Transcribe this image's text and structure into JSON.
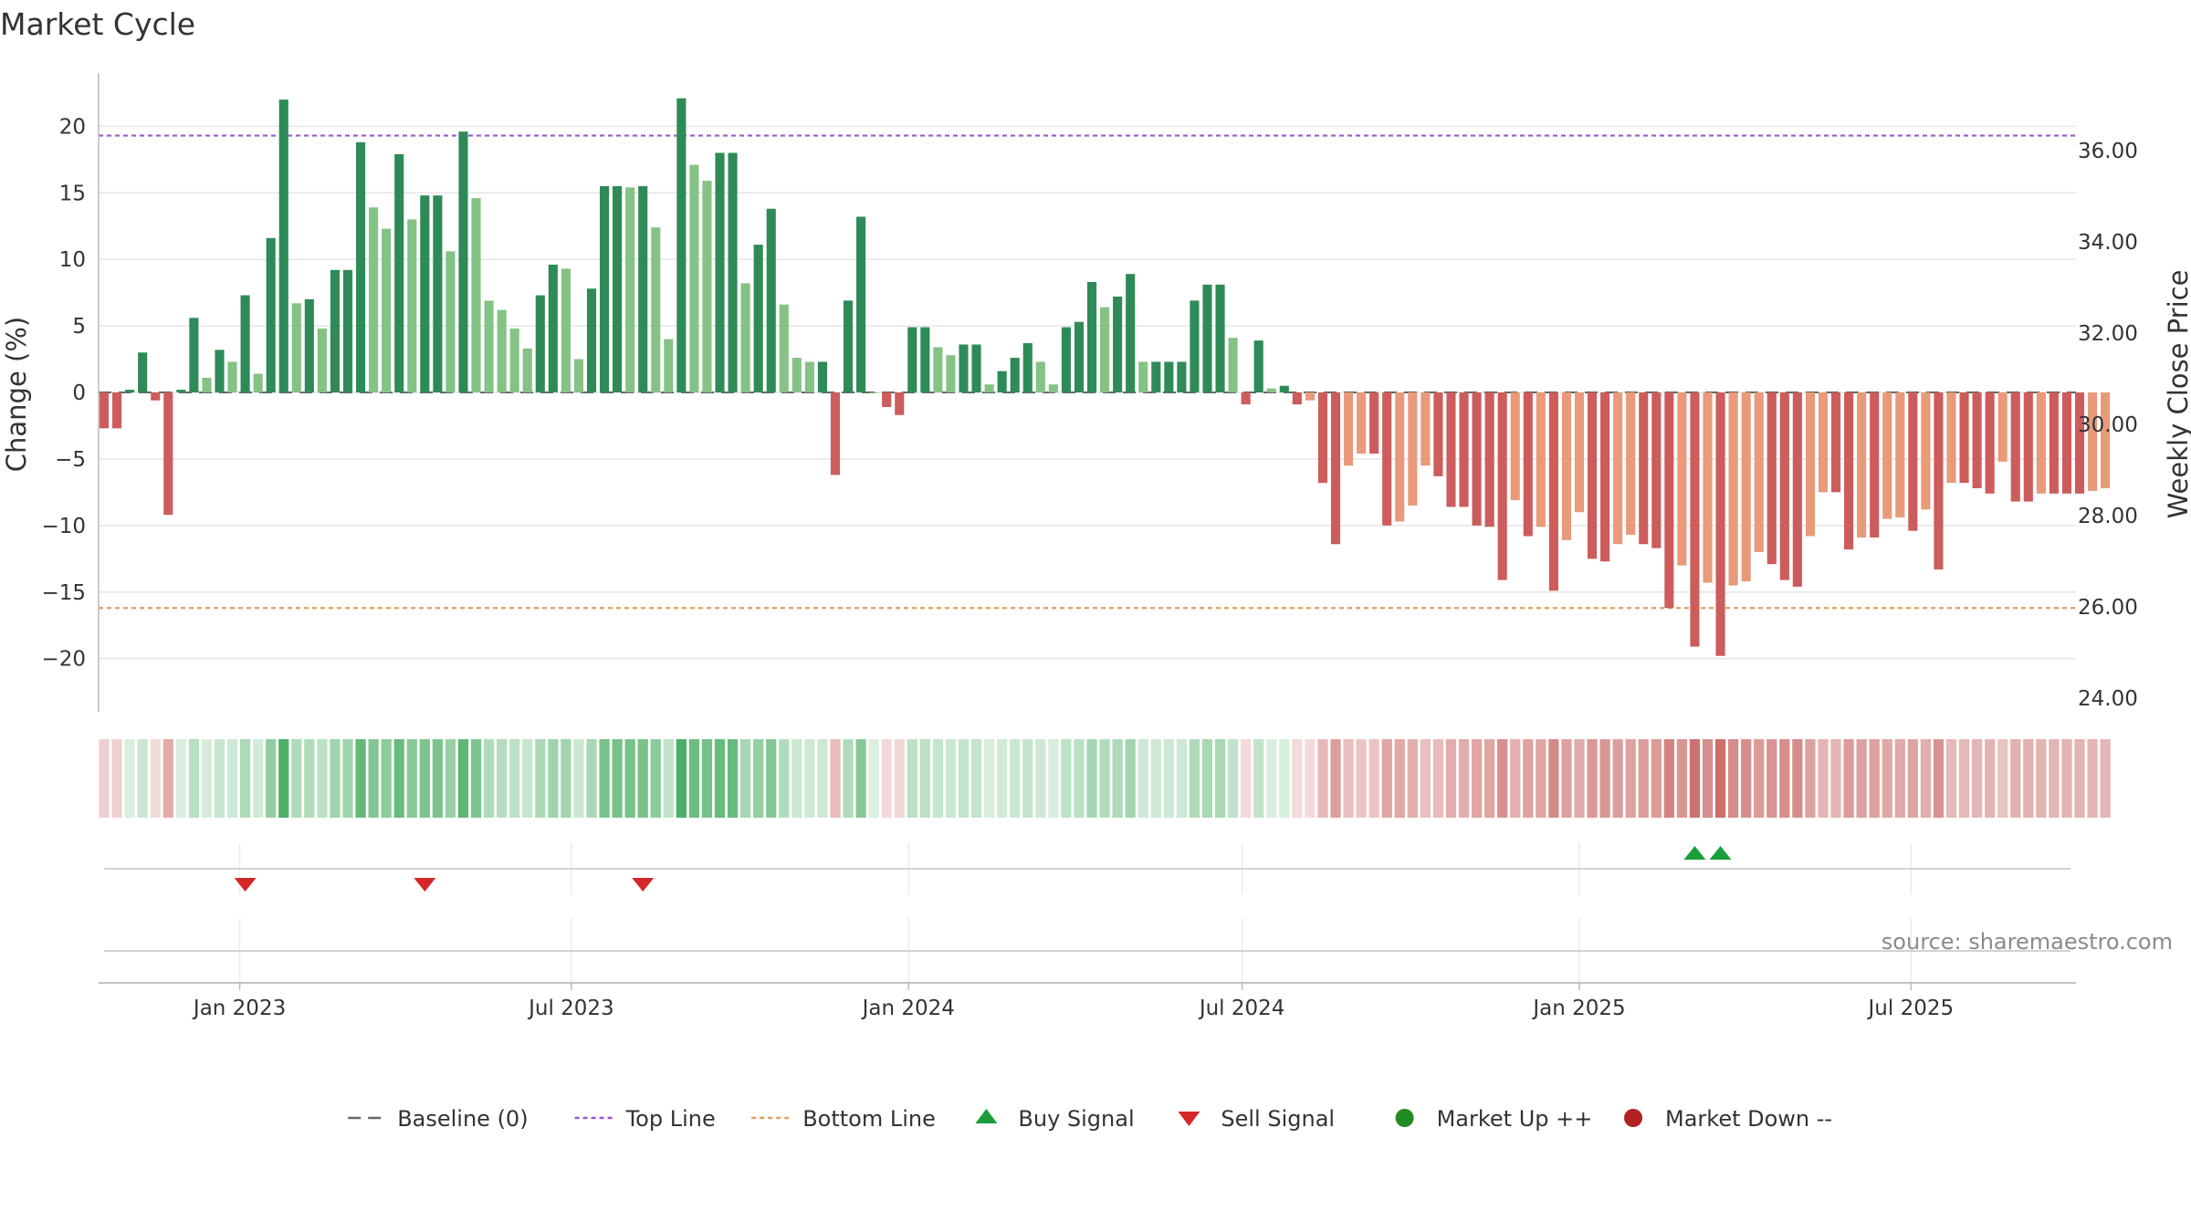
{
  "chart_data": {
    "type": "bar",
    "title": "Market Cycle",
    "ylabel": "Change (%)",
    "y2label": "Weekly Close Price",
    "ylim": [
      -24,
      24
    ],
    "yticks": [
      20,
      15,
      10,
      5,
      0,
      -5,
      -10,
      -15,
      -20
    ],
    "ytick_labels": [
      "20",
      "15",
      "10",
      "5",
      "0",
      "−5",
      "−10",
      "−15",
      "−20"
    ],
    "y2lim": [
      23.7,
      37.7
    ],
    "y2ticks": [
      36,
      34,
      32,
      30,
      28,
      26,
      24
    ],
    "y2tick_labels": [
      "36.00",
      "34.00",
      "32.00",
      "30.00",
      "28.00",
      "26.00",
      "24.00"
    ],
    "x_start": "2022-10-16",
    "x_end": "2025-09-29",
    "xticks": [
      "2023-01-01",
      "2023-07-01",
      "2024-01-01",
      "2024-07-01",
      "2025-01-01",
      "2025-07-01"
    ],
    "xtick_labels": [
      "Jan 2023",
      "Jul 2023",
      "Jan 2024",
      "Jul 2024",
      "Jan 2025",
      "Jul 2025"
    ],
    "first_week": "2022-10-19",
    "top_line": 19.3,
    "bottom_line": -16.2,
    "grid": true,
    "values": [
      -2.7,
      -2.7,
      0.2,
      3.0,
      -0.6,
      -9.2,
      0.2,
      5.6,
      1.1,
      3.2,
      2.3,
      7.3,
      1.4,
      11.6,
      22.0,
      6.7,
      7.0,
      4.8,
      9.2,
      9.2,
      18.8,
      13.9,
      12.3,
      17.9,
      13.0,
      14.8,
      14.8,
      10.6,
      19.6,
      14.6,
      6.9,
      6.2,
      4.8,
      3.3,
      7.3,
      9.6,
      9.3,
      2.5,
      7.8,
      15.5,
      15.5,
      15.4,
      15.5,
      12.4,
      4.0,
      22.1,
      17.1,
      15.9,
      18.0,
      18.0,
      8.2,
      11.1,
      13.8,
      6.6,
      2.6,
      2.3,
      2.3,
      -6.2,
      6.9,
      13.2,
      0.0,
      -1.1,
      -1.7,
      4.9,
      4.9,
      3.4,
      2.8,
      3.6,
      3.6,
      0.6,
      1.6,
      2.6,
      3.7,
      2.3,
      0.6,
      4.9,
      5.3,
      8.3,
      6.4,
      7.2,
      8.9,
      2.3,
      2.3,
      2.3,
      2.3,
      6.9,
      8.1,
      8.1,
      4.1,
      -0.9,
      3.9,
      0.3,
      0.5,
      -0.9,
      -0.6,
      -6.8,
      -11.4,
      -5.5,
      -4.6,
      -4.6,
      -10.0,
      -9.7,
      -8.5,
      -5.5,
      -6.3,
      -8.6,
      -8.6,
      -10.0,
      -10.1,
      -14.1,
      -8.1,
      -10.8,
      -10.1,
      -14.9,
      -11.1,
      -9.0,
      -12.5,
      -12.7,
      -11.4,
      -10.7,
      -11.4,
      -11.7,
      -16.2,
      -13.0,
      -19.1,
      -14.3,
      -19.8,
      -14.5,
      -14.2,
      -12.0,
      -12.9,
      -14.1,
      -14.6,
      -10.8,
      -7.5,
      -7.5,
      -11.8,
      -10.9,
      -10.9,
      -9.5,
      -9.4,
      -10.4,
      -8.8,
      -13.3,
      -6.8,
      -6.8,
      -7.2,
      -7.6,
      -5.2,
      -8.2,
      -8.2,
      -7.6,
      -7.6,
      -7.6,
      -7.6,
      -7.4,
      -7.2
    ],
    "sell_signal_weeks": [
      11,
      25,
      42
    ],
    "buy_signal_weeks": [
      124,
      126
    ],
    "market_up_weeks": [],
    "market_down_weeks": [],
    "legend": {
      "placement": "bottom-center",
      "items": [
        {
          "key": "baseline",
          "label": "Baseline (0)"
        },
        {
          "key": "top",
          "label": "Top Line"
        },
        {
          "key": "bottom",
          "label": "Bottom Line"
        },
        {
          "key": "buy",
          "label": "Buy Signal"
        },
        {
          "key": "sell",
          "label": "Sell Signal"
        },
        {
          "key": "up",
          "label": "Market Up ++"
        },
        {
          "key": "down",
          "label": "Market Down --"
        }
      ]
    },
    "source": "source: sharemaestro.com",
    "colors": {
      "bar_up_strong": "#2e8b57",
      "bar_up_light": "#85c285",
      "bar_down_strong": "#cd5c5c",
      "bar_down_light": "#e89a7a",
      "top_line": "#9b59d0",
      "bottom_line": "#e0a060",
      "baseline": "#666666",
      "buy": "#1a9e3a",
      "sell": "#d62728",
      "market_up": "#228b22",
      "market_down": "#b22222",
      "grid": "#e6e6e6",
      "axis": "#bbbbbb"
    }
  }
}
